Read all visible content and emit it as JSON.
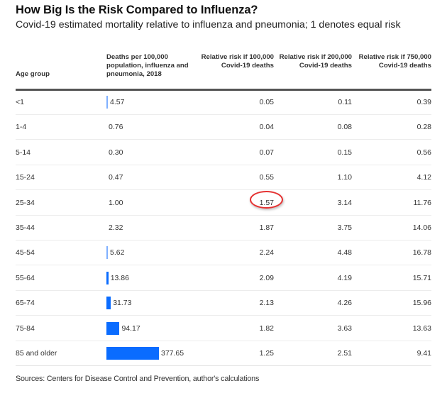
{
  "title": "How Big Is the Risk Compared to Influenza?",
  "subtitle": "Covid-19 estimated mortality relative to influenza and pneumonia; 1 denotes equal risk",
  "columns": {
    "age": "Age group",
    "deaths": "Deaths per 100,000 population, influenza and pneumonia, 2018",
    "r1": "Relative risk if 100,000 Covid-19 deaths",
    "r2": "Relative risk if 200,000 Covid-19 deaths",
    "r3": "Relative risk if 750,000 Covid-19 deaths"
  },
  "source": "Sources: Centers for Disease Control and Prevention, author's calculations",
  "colors": {
    "bar": "#0a6cff",
    "highlight": "#e53232",
    "bar_light": "#7fb0ff"
  },
  "highlight": {
    "row": "25-34",
    "column": "r1",
    "value": "1.57"
  },
  "chart_data": {
    "type": "table",
    "title": "How Big Is the Risk Compared to Influenza?",
    "subtitle": "Covid-19 estimated mortality relative to influenza and pneumonia; 1 denotes equal risk",
    "bar_column": "deaths",
    "bar_max": 377.65,
    "rows": [
      {
        "age": "<1",
        "deaths": "4.57",
        "deaths_value": 4.57,
        "r1": "0.05",
        "r2": "0.11",
        "r3": "0.39"
      },
      {
        "age": "1-4",
        "deaths": "0.76",
        "deaths_value": 0.76,
        "r1": "0.04",
        "r2": "0.08",
        "r3": "0.28"
      },
      {
        "age": "5-14",
        "deaths": "0.30",
        "deaths_value": 0.3,
        "r1": "0.07",
        "r2": "0.15",
        "r3": "0.56"
      },
      {
        "age": "15-24",
        "deaths": "0.47",
        "deaths_value": 0.47,
        "r1": "0.55",
        "r2": "1.10",
        "r3": "4.12"
      },
      {
        "age": "25-34",
        "deaths": "1.00",
        "deaths_value": 1.0,
        "r1": "1.57",
        "r2": "3.14",
        "r3": "11.76"
      },
      {
        "age": "35-44",
        "deaths": "2.32",
        "deaths_value": 2.32,
        "r1": "1.87",
        "r2": "3.75",
        "r3": "14.06"
      },
      {
        "age": "45-54",
        "deaths": "5.62",
        "deaths_value": 5.62,
        "r1": "2.24",
        "r2": "4.48",
        "r3": "16.78"
      },
      {
        "age": "55-64",
        "deaths": "13.86",
        "deaths_value": 13.86,
        "r1": "2.09",
        "r2": "4.19",
        "r3": "15.71"
      },
      {
        "age": "65-74",
        "deaths": "31.73",
        "deaths_value": 31.73,
        "r1": "2.13",
        "r2": "4.26",
        "r3": "15.96"
      },
      {
        "age": "75-84",
        "deaths": "94.17",
        "deaths_value": 94.17,
        "r1": "1.82",
        "r2": "3.63",
        "r3": "13.63"
      },
      {
        "age": "85 and older",
        "deaths": "377.65",
        "deaths_value": 377.65,
        "r1": "1.25",
        "r2": "2.51",
        "r3": "9.41"
      }
    ]
  }
}
